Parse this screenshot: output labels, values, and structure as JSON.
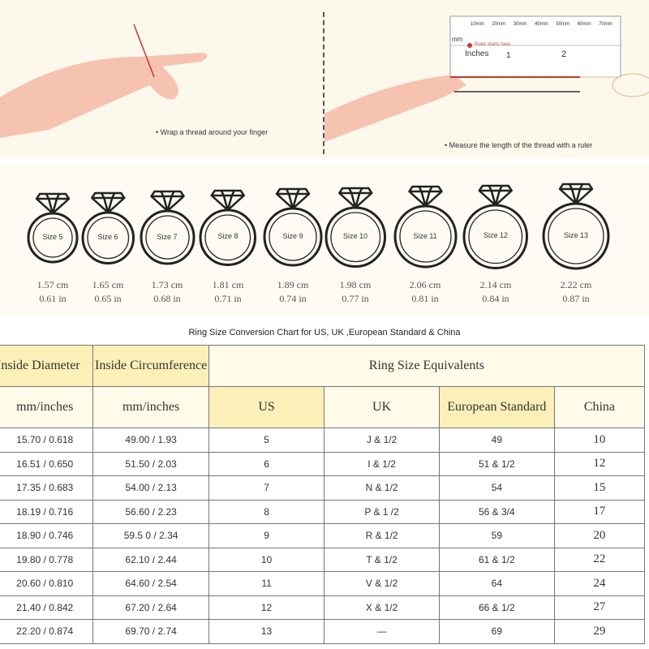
{
  "instructions": {
    "step1": "• Wrap a thread around your finger",
    "step2": "• Measure the length of the thread with a ruler"
  },
  "ruler": {
    "mm_ticks": [
      "10mm",
      "20mm",
      "30mm",
      "40mm",
      "50mm",
      "60mm",
      "70mm"
    ],
    "unit_mm": "mm",
    "start_note": "Ruler starts here",
    "unit_in": "Inches",
    "in_ticks": [
      "1",
      "2"
    ]
  },
  "rings": [
    {
      "size": "Size 5",
      "cm": "1.57 cm",
      "in": "0.61 in"
    },
    {
      "size": "Size 6",
      "cm": "1.65 cm",
      "in": "0.65 in"
    },
    {
      "size": "Size 7",
      "cm": "1.73 cm",
      "in": "0.68 in"
    },
    {
      "size": "Size 8",
      "cm": "1.81 cm",
      "in": "0.71 in"
    },
    {
      "size": "Size 9",
      "cm": "1.89 cm",
      "in": "0.74 in"
    },
    {
      "size": "Size 10",
      "cm": "1.98 cm",
      "in": "0.77 in"
    },
    {
      "size": "Size 11",
      "cm": "2.06 cm",
      "in": "0.81 in"
    },
    {
      "size": "Size 12",
      "cm": "2.14 cm",
      "in": "0.84 in"
    },
    {
      "size": "Size 13",
      "cm": "2.22 cm",
      "in": "0.87 in"
    }
  ],
  "table": {
    "title": "Ring Size Conversion Chart for US, UK ,European Standard & China",
    "h_diameter": "Inside Diameter",
    "h_circ": "Inside Circumference",
    "h_equiv": "Ring Size Equivalents",
    "h_mm1": "mm/inches",
    "h_mm2": "mm/inches",
    "h_us": "US",
    "h_uk": "UK",
    "h_eu": "European Standard",
    "h_cn": "China",
    "rows": [
      [
        "15.70 / 0.618",
        "49.00 / 1.93",
        "5",
        "J & 1/2",
        "49",
        "10"
      ],
      [
        "16.51 / 0.650",
        "51.50 / 2.03",
        "6",
        "I & 1/2",
        "51 & 1/2",
        "12"
      ],
      [
        "17.35 / 0.683",
        "54.00 / 2.13",
        "7",
        "N & 1/2",
        "54",
        "15"
      ],
      [
        "18.19 / 0.716",
        "56.60 / 2.23",
        "8",
        "P & 1 /2",
        "56 & 3/4",
        "17"
      ],
      [
        "18.90 / 0.746",
        "59.5 0 / 2.34",
        "9",
        "R & 1/2",
        "59",
        "20"
      ],
      [
        "19.80 / 0.778",
        "62.10 / 2.44",
        "10",
        "T & 1/2",
        "61 & 1/2",
        "22"
      ],
      [
        "20.60 / 0.810",
        "64.60 / 2.54",
        "11",
        "V & 1/2",
        "64",
        "24"
      ],
      [
        "21.40 / 0.842",
        "67.20 / 2.64",
        "12",
        "X & 1/2",
        "66 & 1/2",
        "27"
      ],
      [
        "22.20 / 0.874",
        "69.70 / 2.74",
        "13",
        "—",
        "69",
        "29"
      ]
    ]
  },
  "colors": {
    "header_yellow": "#fcf0b8",
    "skin": "#f6c3b0",
    "thread": "#c0392b"
  }
}
